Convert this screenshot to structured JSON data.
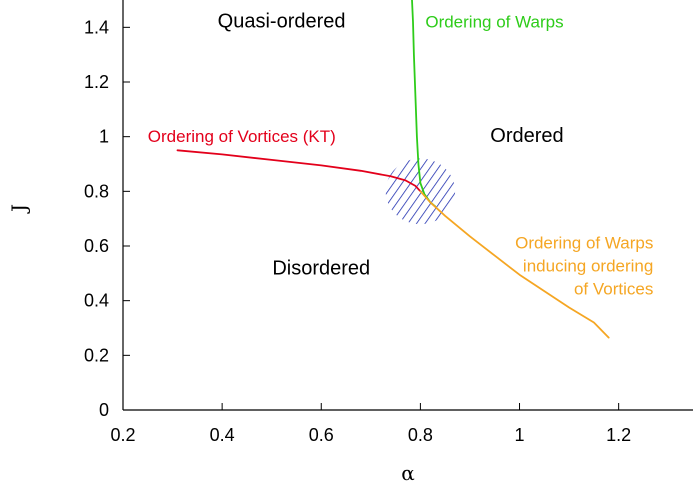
{
  "chart_data": {
    "type": "line",
    "xlabel": "α",
    "ylabel": "J",
    "xlim": [
      0.2,
      1.35
    ],
    "ylim": [
      0,
      1.5
    ],
    "xticks": [
      0.2,
      0.4,
      0.6,
      0.8,
      1,
      1.2
    ],
    "xtick_labels": [
      "0.2",
      "0.4",
      "0.6",
      "0.8",
      "1",
      "1.2"
    ],
    "yticks": [
      0,
      0.2,
      0.4,
      0.6,
      0.8,
      1,
      1.2,
      1.4
    ],
    "ytick_labels": [
      "0",
      "0.2",
      "0.4",
      "0.6",
      "0.8",
      "1",
      "1.2",
      "1.4"
    ],
    "grid": false,
    "series": [
      {
        "name": "Ordering of Vortices (KT)",
        "color": "#e3001b",
        "points": [
          [
            0.31,
            0.95
          ],
          [
            0.4,
            0.935
          ],
          [
            0.5,
            0.915
          ],
          [
            0.6,
            0.895
          ],
          [
            0.68,
            0.875
          ],
          [
            0.74,
            0.855
          ],
          [
            0.77,
            0.84
          ],
          [
            0.79,
            0.82
          ],
          [
            0.8,
            0.8
          ]
        ]
      },
      {
        "name": "Ordering of Warps",
        "color": "#2ecc1a",
        "points": [
          [
            0.783,
            1.5
          ],
          [
            0.785,
            1.42
          ],
          [
            0.787,
            1.3
          ],
          [
            0.789,
            1.2
          ],
          [
            0.791,
            1.1
          ],
          [
            0.793,
            1.0
          ],
          [
            0.796,
            0.9
          ],
          [
            0.8,
            0.83
          ],
          [
            0.808,
            0.79
          ],
          [
            0.82,
            0.76
          ],
          [
            0.83,
            0.745
          ]
        ]
      },
      {
        "name": "Ordering of Warps inducing ordering of Vortices",
        "color": "#f5a623",
        "points": [
          [
            0.8,
            0.8
          ],
          [
            0.82,
            0.76
          ],
          [
            0.85,
            0.71
          ],
          [
            0.9,
            0.635
          ],
          [
            0.95,
            0.565
          ],
          [
            1.0,
            0.495
          ],
          [
            1.05,
            0.435
          ],
          [
            1.1,
            0.375
          ],
          [
            1.15,
            0.32
          ],
          [
            1.18,
            0.265
          ]
        ]
      }
    ],
    "hatched_region": {
      "center": [
        0.8,
        0.8
      ],
      "radius_x": 0.07,
      "radius_y": 0.12,
      "color": "#1f2fb0"
    },
    "region_labels": [
      {
        "text": "Quasi-ordered",
        "x": 0.52,
        "y": 1.4
      },
      {
        "text": "Ordered",
        "x": 1.015,
        "y": 0.98
      },
      {
        "text": "Disordered",
        "x": 0.6,
        "y": 0.495
      }
    ],
    "annotations": [
      {
        "lines": [
          "Ordering of Warps"
        ],
        "color": "#2ecc1a",
        "x": 0.81,
        "y": 1.4,
        "anchor": "start"
      },
      {
        "lines": [
          "Ordering of Vortices (KT)"
        ],
        "color": "#e3001b",
        "x": 0.25,
        "y": 0.98,
        "anchor": "start"
      },
      {
        "lines": [
          "Ordering of Warps",
          "inducing ordering",
          "of Vortices"
        ],
        "color": "#f5a623",
        "x": 1.27,
        "y": 0.59,
        "anchor": "end"
      }
    ]
  }
}
